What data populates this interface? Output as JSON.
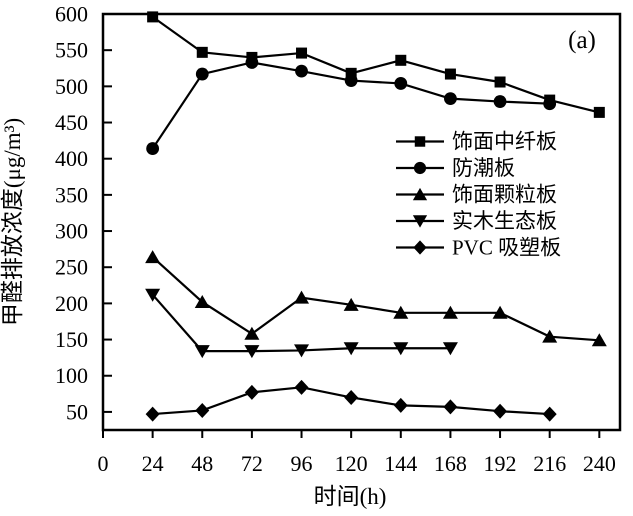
{
  "figure": {
    "annotation": "(a)",
    "background": "#ffffff",
    "foreground": "#000000"
  },
  "chart_data": {
    "type": "line",
    "title": "",
    "xlabel": "时间(h)",
    "ylabel": "甲醛排放浓度(μg/m³)",
    "xlim": [
      0,
      250
    ],
    "ylim": [
      25,
      600
    ],
    "xticks": [
      0,
      24,
      48,
      72,
      96,
      120,
      144,
      168,
      192,
      216,
      240
    ],
    "yticks": [
      50,
      100,
      150,
      200,
      250,
      300,
      350,
      400,
      450,
      500,
      550,
      600
    ],
    "grid": false,
    "legend_position": "inside-right",
    "annotation": "(a)",
    "line_color": "#000000",
    "series": [
      {
        "name": "饰面中纤板",
        "marker": "square",
        "x": [
          24,
          48,
          72,
          96,
          120,
          144,
          168,
          192,
          216,
          240
        ],
        "y": [
          596,
          547,
          540,
          546,
          518,
          536,
          517,
          506,
          481,
          464
        ]
      },
      {
        "name": "防潮板",
        "marker": "circle",
        "x": [
          24,
          48,
          72,
          96,
          120,
          144,
          168,
          192,
          216
        ],
        "y": [
          414,
          517,
          533,
          521,
          508,
          504,
          483,
          479,
          476
        ]
      },
      {
        "name": "饰面颗粒板",
        "marker": "triangle-up",
        "x": [
          24,
          48,
          72,
          96,
          120,
          144,
          168,
          192,
          216,
          240
        ],
        "y": [
          264,
          202,
          158,
          208,
          198,
          187,
          187,
          187,
          154,
          149
        ]
      },
      {
        "name": "实木生态板",
        "marker": "triangle-down",
        "x": [
          24,
          48,
          72,
          96,
          120,
          144,
          168
        ],
        "y": [
          212,
          134,
          134,
          135,
          138,
          138,
          138
        ]
      },
      {
        "name": "PVC 吸塑板",
        "marker": "diamond",
        "x": [
          24,
          48,
          72,
          96,
          120,
          144,
          168,
          192,
          216
        ],
        "y": [
          47,
          52,
          77,
          84,
          70,
          59,
          57,
          51,
          47
        ]
      }
    ]
  }
}
